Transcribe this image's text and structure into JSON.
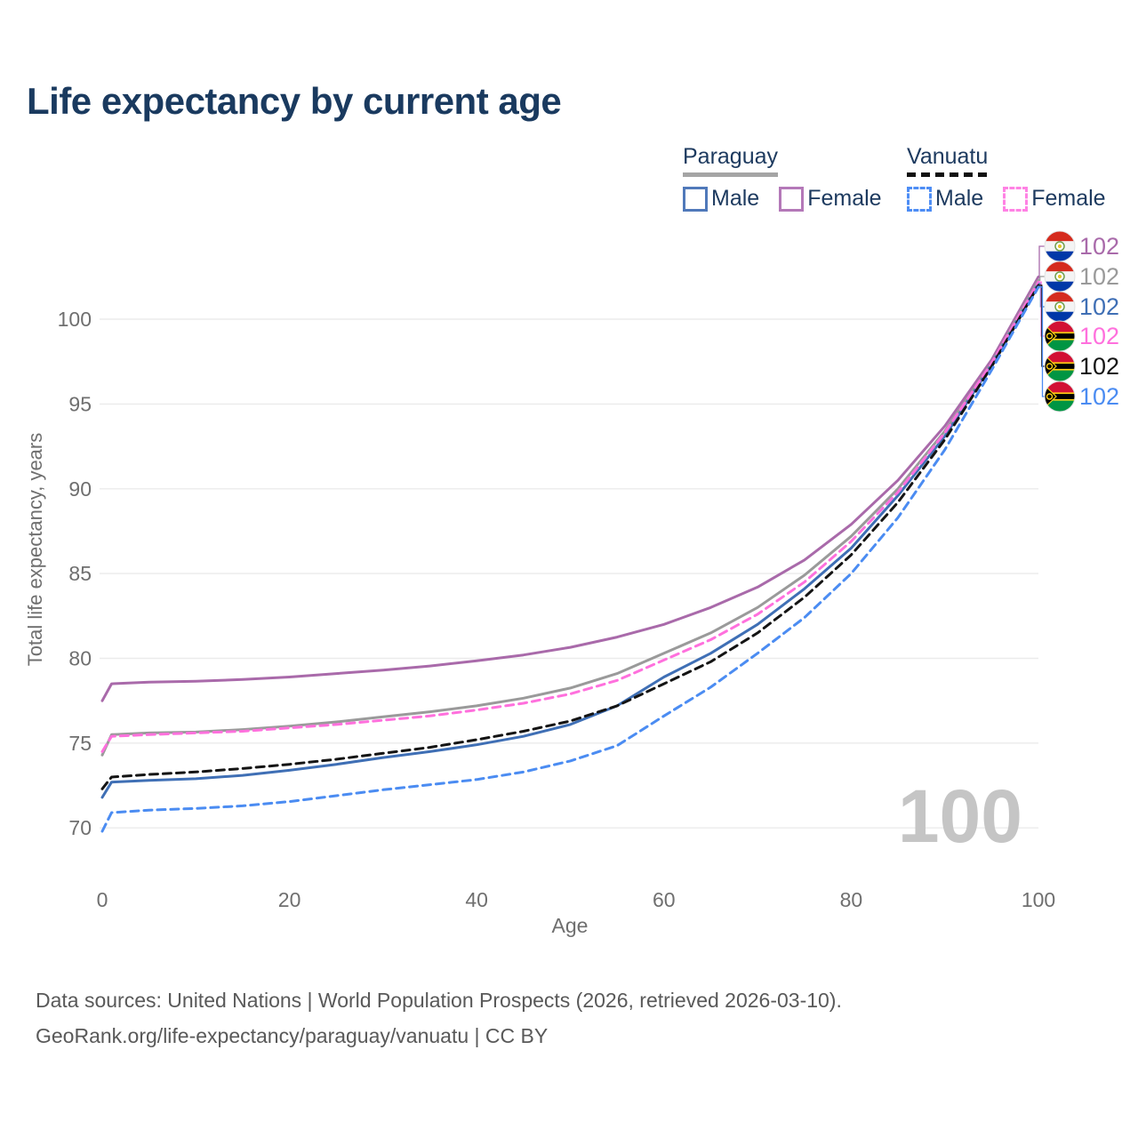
{
  "page": {
    "title": "Life expectancy by current age"
  },
  "legend": {
    "groups": [
      {
        "label": "Paraguay",
        "line_style": "solid",
        "underline_color": "#a5a5a5",
        "items": [
          {
            "label": "Male",
            "color": "#3f6fb5",
            "dashed": false
          },
          {
            "label": "Female",
            "color": "#b478b8",
            "dashed": false
          }
        ]
      },
      {
        "label": "Vanuatu",
        "line_style": "dashed",
        "underline_color": "#111111",
        "items": [
          {
            "label": "Male",
            "color": "#4d8df5",
            "dashed": true
          },
          {
            "label": "Female",
            "color": "#ff82e4",
            "dashed": true
          }
        ]
      }
    ]
  },
  "chart_data": {
    "type": "line",
    "title": "Life expectancy by current age",
    "xlabel": "Age",
    "ylabel": "Total life expectancy, years",
    "xlim": [
      0,
      100
    ],
    "ylim": [
      69.5,
      103.5
    ],
    "xticks": [
      0,
      20,
      40,
      60,
      80,
      100
    ],
    "yticks": [
      70,
      75,
      80,
      85,
      90,
      95,
      100
    ],
    "grid": "horizontal",
    "legend_position": "top-right",
    "watermark": "100",
    "x": [
      0,
      1,
      5,
      10,
      15,
      20,
      25,
      30,
      35,
      40,
      45,
      50,
      55,
      60,
      65,
      70,
      75,
      80,
      85,
      90,
      95,
      100
    ],
    "series": [
      {
        "name": "Paraguay Female",
        "country": "Paraguay",
        "sex": "Female",
        "color": "#a96aaa",
        "dashed": false,
        "end_label": "102",
        "values": [
          77.5,
          78.5,
          78.6,
          78.65,
          78.75,
          78.9,
          79.1,
          79.3,
          79.55,
          79.85,
          80.2,
          80.65,
          81.25,
          82.0,
          83.0,
          84.2,
          85.8,
          87.9,
          90.5,
          93.7,
          97.6,
          102.5
        ]
      },
      {
        "name": "Paraguay",
        "country": "Paraguay",
        "sex": "Both",
        "color": "#9a9a9a",
        "dashed": false,
        "end_label": "102",
        "values": [
          74.3,
          75.5,
          75.6,
          75.65,
          75.8,
          76.0,
          76.25,
          76.55,
          76.85,
          77.2,
          77.65,
          78.25,
          79.1,
          80.3,
          81.5,
          83.0,
          84.9,
          87.2,
          90.0,
          93.4,
          97.4,
          102.3
        ]
      },
      {
        "name": "Paraguay Male",
        "country": "Paraguay",
        "sex": "Male",
        "color": "#3f6fb5",
        "dashed": false,
        "end_label": "102",
        "values": [
          71.8,
          72.7,
          72.8,
          72.9,
          73.1,
          73.4,
          73.75,
          74.15,
          74.5,
          74.9,
          75.4,
          76.1,
          77.2,
          78.9,
          80.3,
          82.0,
          84.1,
          86.5,
          89.6,
          93.1,
          97.3,
          102.1
        ]
      },
      {
        "name": "Vanuatu Female",
        "country": "Vanuatu",
        "sex": "Female",
        "color": "#ff70dd",
        "dashed": true,
        "end_label": "102",
        "values": [
          74.5,
          75.4,
          75.5,
          75.6,
          75.7,
          75.9,
          76.1,
          76.35,
          76.6,
          76.95,
          77.35,
          77.9,
          78.7,
          79.9,
          81.1,
          82.6,
          84.5,
          86.9,
          89.8,
          93.3,
          97.4,
          102.2
        ]
      },
      {
        "name": "Vanuatu",
        "country": "Vanuatu",
        "sex": "Both",
        "color": "#141414",
        "dashed": true,
        "end_label": "102",
        "values": [
          72.3,
          73.0,
          73.15,
          73.3,
          73.5,
          73.75,
          74.05,
          74.4,
          74.75,
          75.2,
          75.7,
          76.3,
          77.2,
          78.5,
          79.8,
          81.5,
          83.6,
          86.1,
          89.2,
          92.9,
          97.2,
          102.0
        ]
      },
      {
        "name": "Vanuatu Male",
        "country": "Vanuatu",
        "sex": "Male",
        "color": "#4b8cf2",
        "dashed": true,
        "end_label": "102",
        "values": [
          69.8,
          70.9,
          71.05,
          71.15,
          71.3,
          71.55,
          71.9,
          72.25,
          72.55,
          72.85,
          73.3,
          73.95,
          74.85,
          76.6,
          78.3,
          80.3,
          82.4,
          85.0,
          88.3,
          92.3,
          97.0,
          101.9
        ]
      }
    ]
  },
  "footer": {
    "line1": "Data sources: United Nations | World Population Prospects (2026, retrieved 2026-03-10).",
    "line2": "GeoRank.org/life-expectancy/paraguay/vanuatu | CC BY"
  }
}
